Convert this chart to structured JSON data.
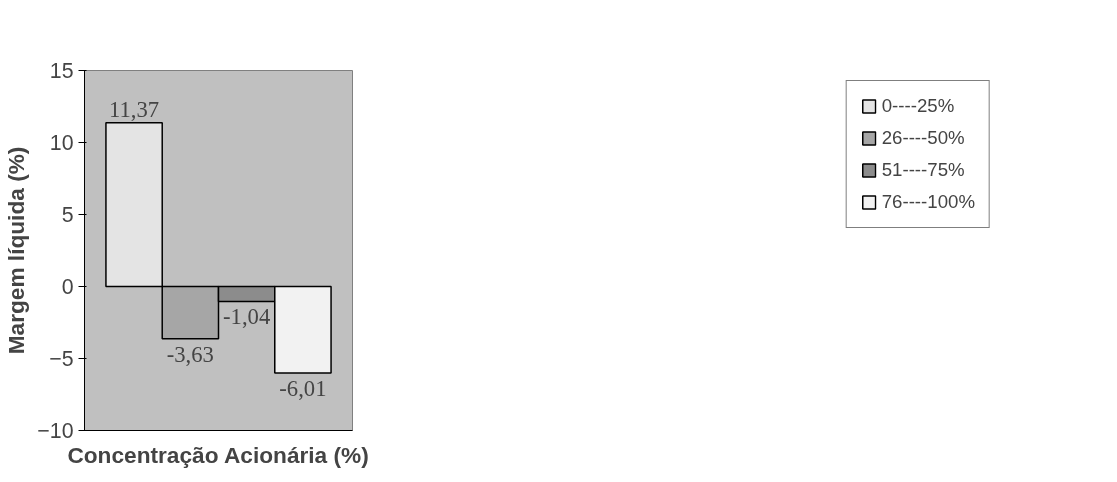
{
  "chart_data": {
    "type": "bar",
    "xlabel": "Concentração Acionária (%)",
    "ylabel": "Margem líquida (%)",
    "categories": [
      null
    ],
    "series": [
      {
        "name": "0----25%",
        "color": "#e4e4e4",
        "values": [
          11.37
        ],
        "value_labels": [
          "11,37"
        ]
      },
      {
        "name": "26----50%",
        "color": "#a6a6a6",
        "values": [
          -3.63
        ],
        "value_labels": [
          "-3,63"
        ]
      },
      {
        "name": "51----75%",
        "color": "#8c8c8c",
        "values": [
          -1.04
        ],
        "value_labels": [
          "-1,04"
        ]
      },
      {
        "name": "76----100%",
        "color": "#f2f2f2",
        "values": [
          -6.01
        ],
        "value_labels": [
          "-6,01"
        ]
      }
    ],
    "ylim": [
      -10,
      15
    ],
    "yticks": [
      -10,
      -5,
      0,
      5,
      10,
      15
    ],
    "grid": false,
    "legend": "right",
    "tick_labels": "y"
  }
}
